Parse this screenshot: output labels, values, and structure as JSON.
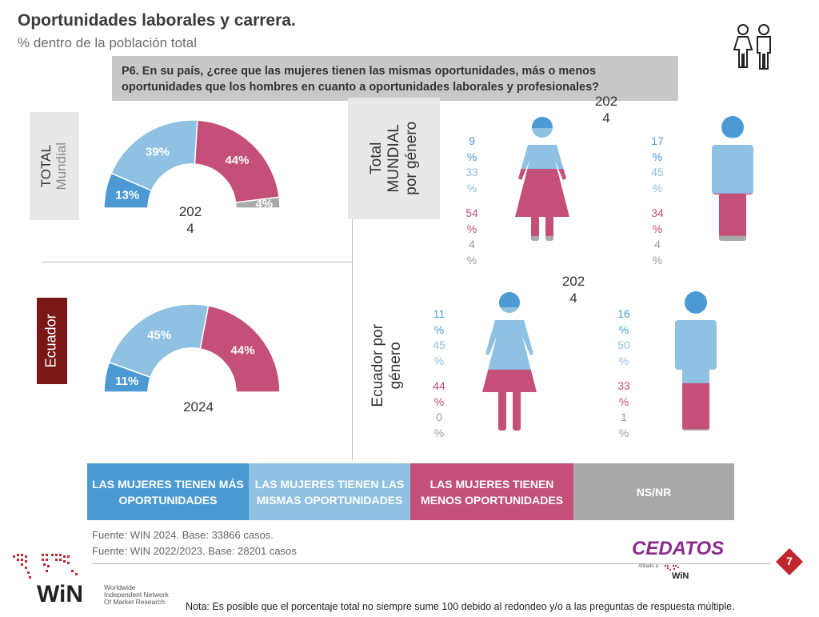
{
  "header": {
    "title": "Oportunidades laborales y carrera.",
    "subtitle": "% dentro de la población total",
    "question": "P6. En su país, ¿cree que las mujeres tienen las mismas oportunidades, más o menos oportunidades que los hombres en cuanto a oportunidades laborales y profesionales?"
  },
  "labels": {
    "total_l1": "TOTAL",
    "total_l2": "Mundial",
    "ecuador": "Ecuador",
    "mundial_gender_l1": "Total",
    "mundial_gender_l2": "MUNDIAL",
    "mundial_gender_l3": "por género",
    "ecuador_gender_l1": "Ecuador  por",
    "ecuador_gender_l2": "género"
  },
  "years": {
    "total_chart_a": "202",
    "total_chart_b": "4",
    "ecuador_chart": "2024",
    "mundial_gender_a": "202",
    "mundial_gender_b": "4",
    "ecuador_gender_a": "202",
    "ecuador_gender_b": "4"
  },
  "chart_data": [
    {
      "type": "pie",
      "subtype": "half-donut",
      "title": "TOTAL Mundial 2024",
      "categories": [
        "LAS MUJERES TIENEN MÁS OPORTUNIDADES",
        "LAS MUJERES TIENEN LAS MISMAS OPORTUNIDADES",
        "LAS MUJERES TIENEN MENOS OPORTUNIDADES",
        "NS/NR"
      ],
      "values": [
        13,
        39,
        44,
        4
      ],
      "value_labels": [
        "13%",
        "39%",
        "44%",
        "4%"
      ]
    },
    {
      "type": "pie",
      "subtype": "half-donut",
      "title": "Ecuador 2024",
      "categories": [
        "LAS MUJERES TIENEN MÁS OPORTUNIDADES",
        "LAS MUJERES TIENEN LAS MISMAS OPORTUNIDADES",
        "LAS MUJERES TIENEN MENOS OPORTUNIDADES",
        "NS/NR"
      ],
      "values": [
        11,
        45,
        44,
        0
      ],
      "value_labels": [
        "11%",
        "45%",
        "44%",
        ""
      ]
    },
    {
      "type": "bar",
      "subtype": "stacked-pictogram",
      "title": "Total MUNDIAL por género 2024",
      "categories": [
        "Mujeres",
        "Hombres"
      ],
      "series": [
        {
          "name": "LAS MUJERES TIENEN MÁS OPORTUNIDADES",
          "values": [
            9,
            17
          ]
        },
        {
          "name": "LAS MUJERES TIENEN LAS MISMAS OPORTUNIDADES",
          "values": [
            33,
            45
          ]
        },
        {
          "name": "LAS MUJERES TIENEN MENOS OPORTUNIDADES",
          "values": [
            54,
            34
          ]
        },
        {
          "name": "NS/NR",
          "values": [
            4,
            4
          ]
        }
      ],
      "female_labels": [
        "9",
        "%",
        "33",
        "%",
        "54",
        "%",
        "4",
        "%"
      ],
      "male_labels": [
        "17",
        "%",
        "45",
        "%",
        "34",
        "%",
        "4",
        "%"
      ]
    },
    {
      "type": "bar",
      "subtype": "stacked-pictogram",
      "title": "Ecuador por género 2024",
      "categories": [
        "Mujeres",
        "Hombres"
      ],
      "series": [
        {
          "name": "LAS MUJERES TIENEN MÁS OPORTUNIDADES",
          "values": [
            11,
            16
          ]
        },
        {
          "name": "LAS MUJERES TIENEN LAS MISMAS OPORTUNIDADES",
          "values": [
            45,
            50
          ]
        },
        {
          "name": "LAS MUJERES TIENEN MENOS OPORTUNIDADES",
          "values": [
            44,
            33
          ]
        },
        {
          "name": "NS/NR",
          "values": [
            0,
            1
          ]
        }
      ],
      "female_labels": [
        "11",
        "%",
        "45",
        "%",
        "44",
        "%",
        "0",
        "%"
      ],
      "male_labels": [
        "16",
        "%",
        "50",
        "%",
        "33",
        "%",
        "1",
        "%"
      ]
    }
  ],
  "legend": [
    {
      "label": "LAS MUJERES TIENEN MÁS OPORTUNIDADES",
      "color": "#4b9ad4"
    },
    {
      "label": "LAS MUJERES TIENEN LAS MISMAS OPORTUNIDADES",
      "color": "#8fc1e2"
    },
    {
      "label": "LAS MUJERES TIENEN MENOS OPORTUNIDADES",
      "color": "#c44f78"
    },
    {
      "label": "NS/NR",
      "color": "#a9a9a9"
    }
  ],
  "colors": {
    "mas": "#4b9ad4",
    "mismas": "#8fc1e2",
    "menos": "#c44f78",
    "nsnr": "#a9a9a9",
    "accent_red": "#c0272d"
  },
  "footer": {
    "source1": "Fuente: WIN 2024. Base: 33866 casos.",
    "source2": "Fuente: WIN 2022/2023. Base: 28201 casos",
    "note": "Nota: Es posible que el porcentaje total no siempre sume 100 debido al redondeo y/o a las preguntas de respuesta múltiple.",
    "page_number": "7",
    "win_logo": "WiN",
    "win_tag": [
      "Worldwide",
      "Independent Network",
      "Of Market Research"
    ],
    "cedatos": "CEDATOS",
    "afiliado": "Afiliado a:",
    "cedatos_win": "WiN",
    "icon_people": "people-icon"
  }
}
